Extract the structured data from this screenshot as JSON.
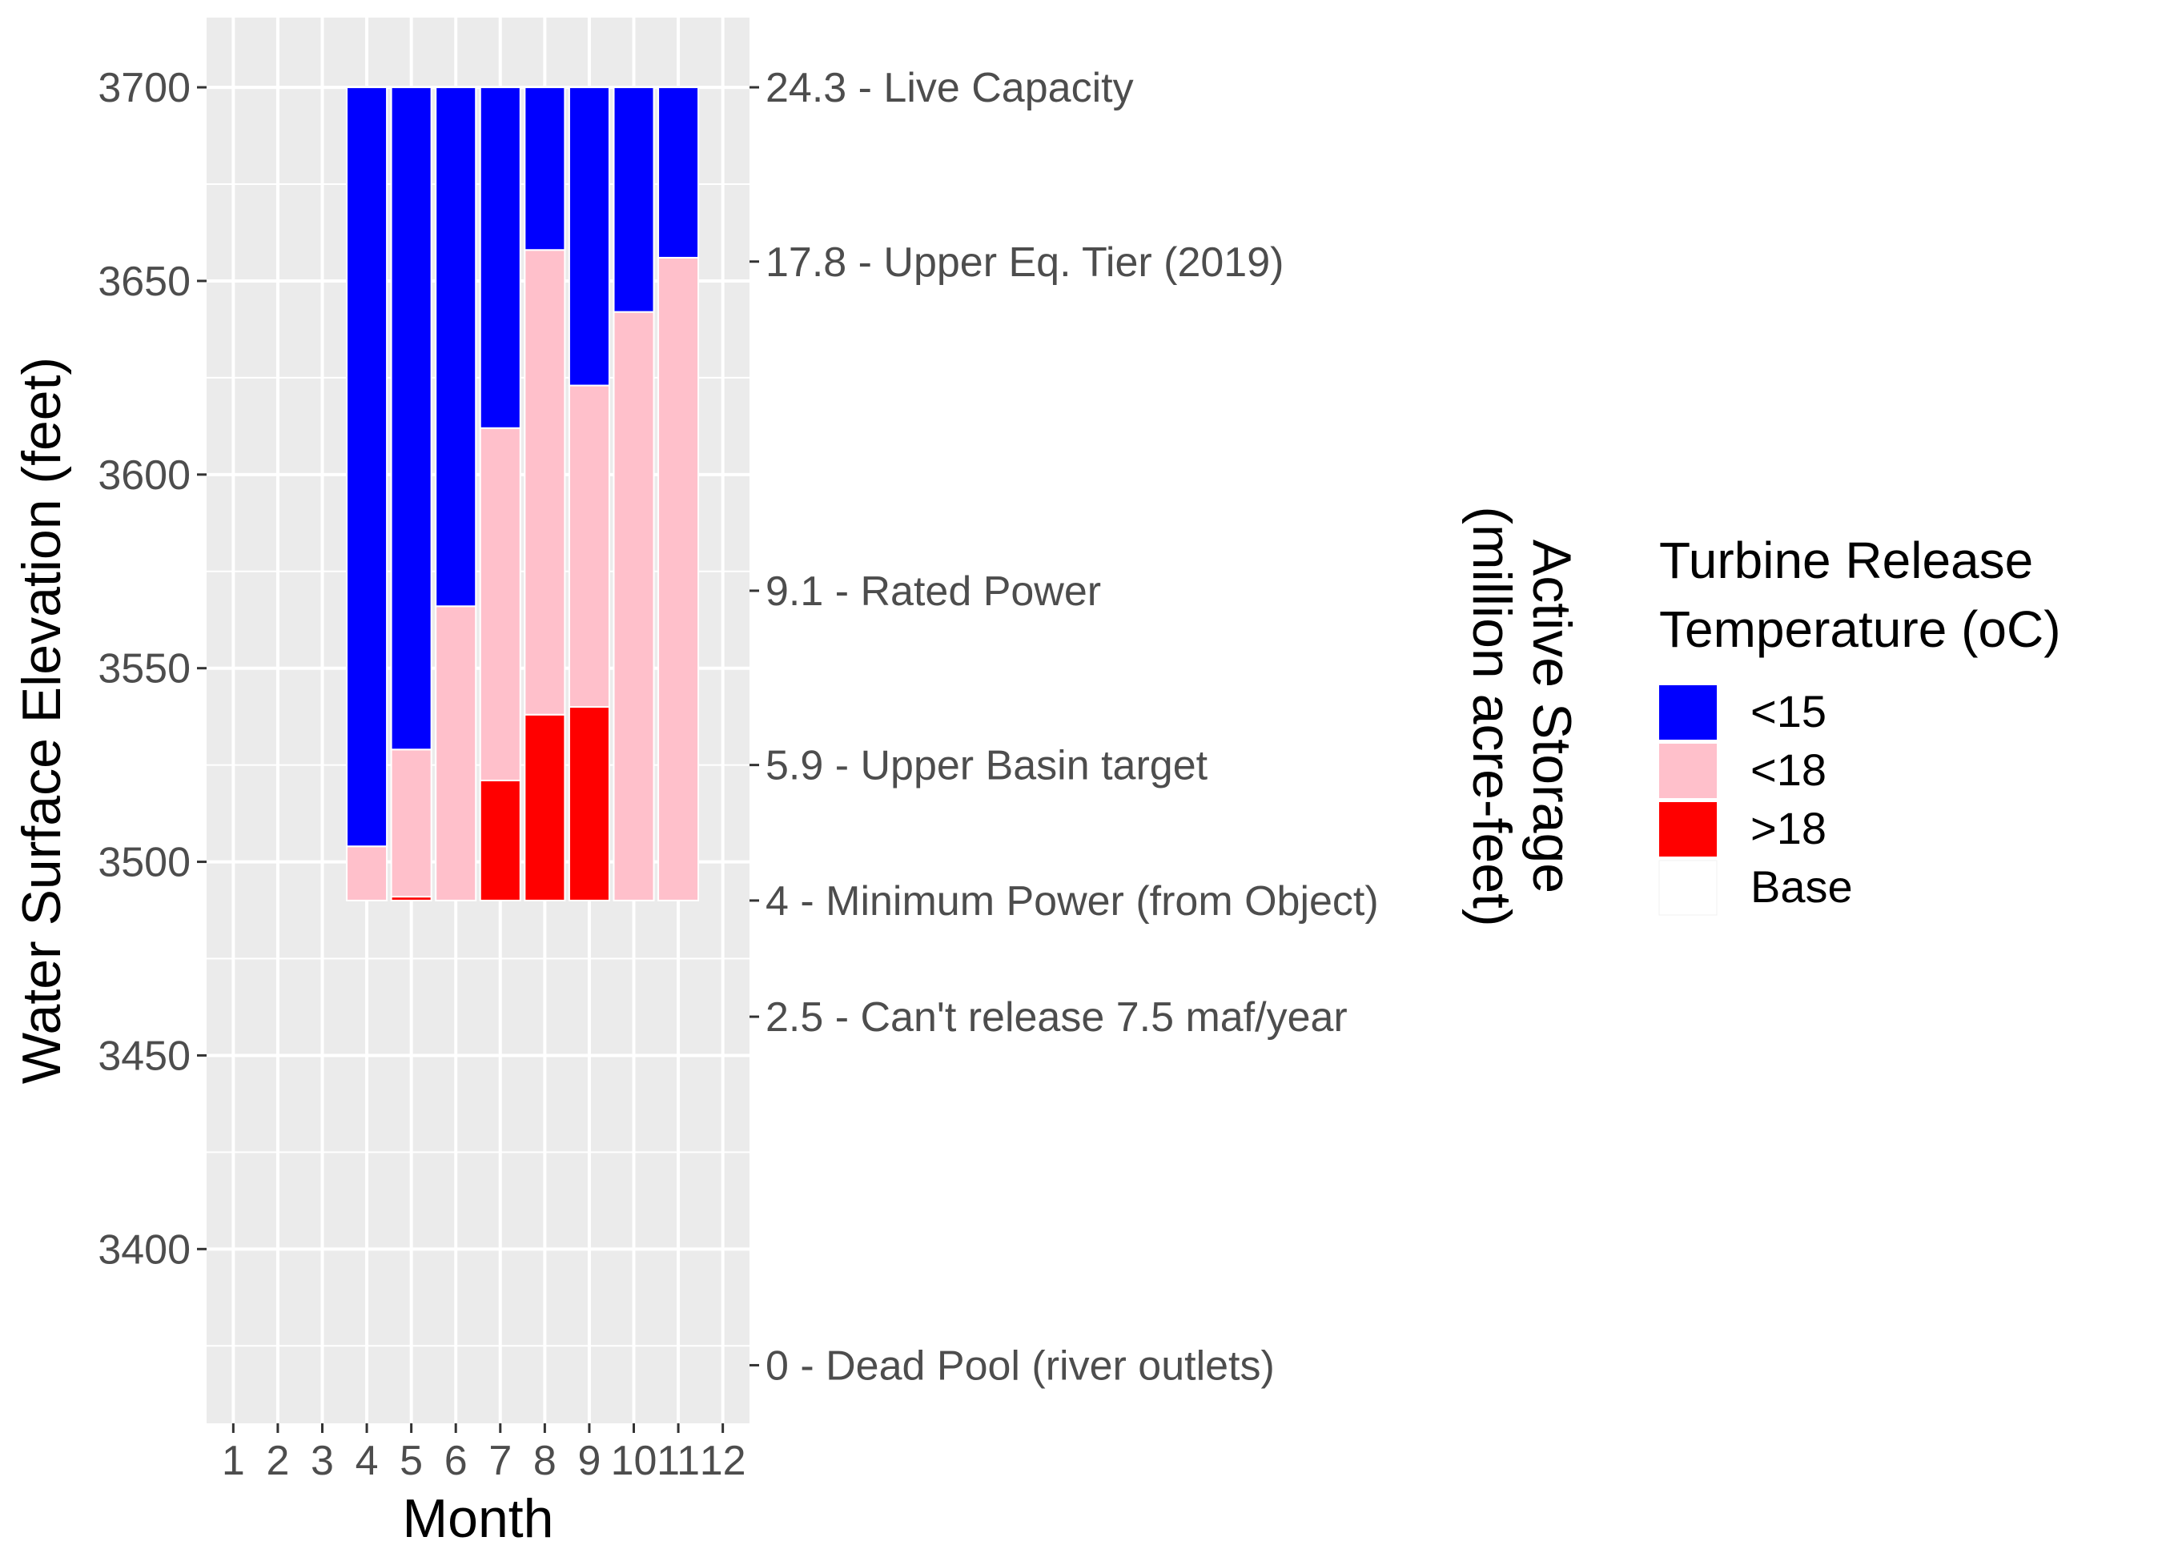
{
  "chart_data": {
    "type": "bar",
    "stacked": true,
    "xlabel": "Month",
    "ylabel": "Water Surface Elevation (feet)",
    "y2label_line1": "Active Storage",
    "y2label_line2": "(million acre-feet)",
    "x_ticks": [
      "1",
      "2",
      "3",
      "4",
      "5",
      "6",
      "7",
      "8",
      "9",
      "10",
      "11",
      "12"
    ],
    "ylim": [
      3355,
      3718
    ],
    "y_ticks": [
      3400,
      3450,
      3500,
      3550,
      3600,
      3650,
      3700
    ],
    "y_tick_labels": [
      "3400",
      "3450",
      "3500",
      "3550",
      "3600",
      "3650",
      "3700"
    ],
    "secondary_axis": [
      {
        "elevation": 3370,
        "label": "0 - Dead Pool (river outlets)"
      },
      {
        "elevation": 3460,
        "label": "2.5 - Can't release 7.5 maf/year"
      },
      {
        "elevation": 3490,
        "label": "4 - Minimum Power (from Object)"
      },
      {
        "elevation": 3525,
        "label": "5.9 - Upper Basin target"
      },
      {
        "elevation": 3570,
        "label": "9.1 - Rated Power"
      },
      {
        "elevation": 3655,
        "label": "17.8 - Upper Eq. Tier (2019)"
      },
      {
        "elevation": 3700,
        "label": "24.3 - Live Capacity"
      }
    ],
    "base_elevation": 3490,
    "legend": {
      "title_line1": "Turbine Release",
      "title_line2": "Temperature (oC)",
      "position": "right",
      "entries": [
        {
          "label": "<15",
          "color": "#0000ff"
        },
        {
          "label": "<18",
          "color": "#ffc0cb"
        },
        {
          "label": ">18",
          "color": "#ff0000"
        },
        {
          "label": "Base",
          "color": "#ffffff"
        }
      ]
    },
    "bars": [
      {
        "month": 4,
        "segments": [
          {
            "cat": "<18",
            "from": 3490,
            "to": 3504
          },
          {
            "cat": "<15",
            "from": 3504,
            "to": 3700
          }
        ]
      },
      {
        "month": 5,
        "segments": [
          {
            "cat": ">18",
            "from": 3490,
            "to": 3491
          },
          {
            "cat": "<18",
            "from": 3491,
            "to": 3529
          },
          {
            "cat": "<15",
            "from": 3529,
            "to": 3700
          }
        ]
      },
      {
        "month": 6,
        "segments": [
          {
            "cat": "<18",
            "from": 3490,
            "to": 3566
          },
          {
            "cat": "<15",
            "from": 3566,
            "to": 3700
          }
        ]
      },
      {
        "month": 7,
        "segments": [
          {
            "cat": ">18",
            "from": 3490,
            "to": 3521
          },
          {
            "cat": "<18",
            "from": 3521,
            "to": 3612
          },
          {
            "cat": "<15",
            "from": 3612,
            "to": 3700
          }
        ]
      },
      {
        "month": 8,
        "segments": [
          {
            "cat": ">18",
            "from": 3490,
            "to": 3538
          },
          {
            "cat": "<18",
            "from": 3538,
            "to": 3658
          },
          {
            "cat": "<15",
            "from": 3658,
            "to": 3700
          }
        ]
      },
      {
        "month": 9,
        "segments": [
          {
            "cat": ">18",
            "from": 3490,
            "to": 3540
          },
          {
            "cat": "<18",
            "from": 3540,
            "to": 3623
          },
          {
            "cat": "<15",
            "from": 3623,
            "to": 3700
          }
        ]
      },
      {
        "month": 10,
        "segments": [
          {
            "cat": "<18",
            "from": 3490,
            "to": 3642
          },
          {
            "cat": "<15",
            "from": 3642,
            "to": 3700
          }
        ]
      },
      {
        "month": 11,
        "segments": [
          {
            "cat": "<18",
            "from": 3490,
            "to": 3656
          },
          {
            "cat": "<15",
            "from": 3656,
            "to": 3700
          }
        ]
      }
    ],
    "panel_background": "#ebebeb",
    "grid": true
  }
}
